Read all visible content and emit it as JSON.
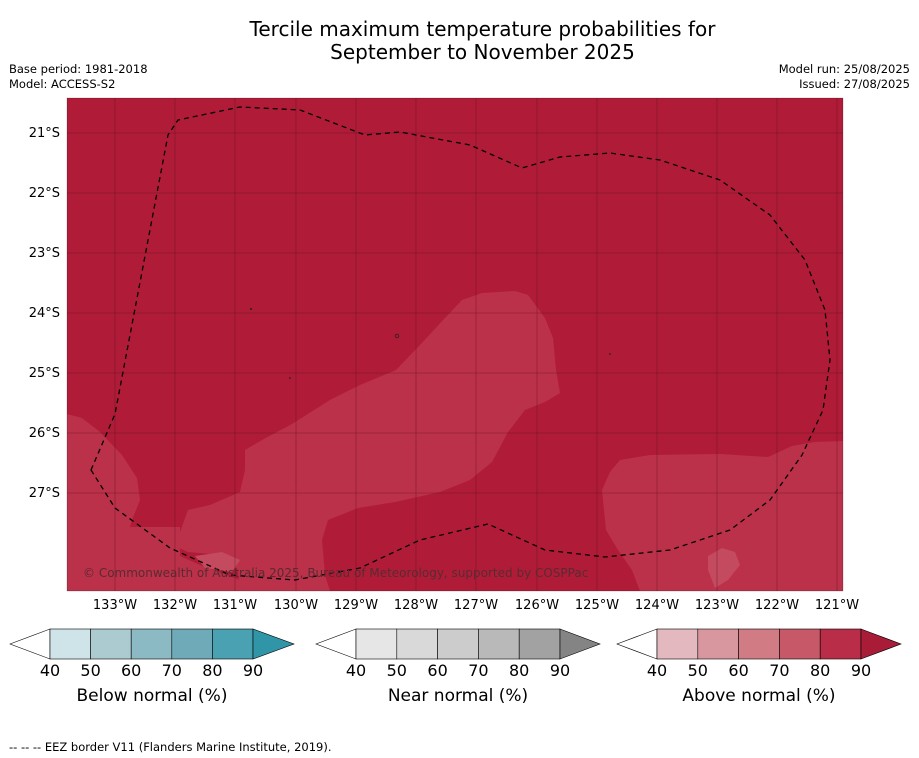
{
  "title_line1": "Tercile maximum temperature probabilities for",
  "title_line2": "September to November 2025",
  "base_period": "Base period: 1981-2018",
  "model": "Model: ACCESS-S2",
  "model_run": "Model run: 25/08/2025",
  "issued": "Issued: 27/08/2025",
  "latitude_labels": [
    "21°S",
    "22°S",
    "23°S",
    "24°S",
    "25°S",
    "26°S",
    "27°S"
  ],
  "longitude_labels": [
    "133°W",
    "132°W",
    "131°W",
    "130°W",
    "129°W",
    "128°W",
    "127°W",
    "126°W",
    "125°W",
    "124°W",
    "123°W",
    "122°W",
    "121°W"
  ],
  "copyright": "© Commonwealth of Australia 2025, Bureau of Meteorology, supported by COSPPac",
  "colorbars": [
    {
      "title": "Below normal (%)",
      "ticks": [
        "40",
        "50",
        "60",
        "70",
        "80",
        "90"
      ],
      "colors": [
        "#ffffff",
        "#cfe4e8",
        "#abcbd1",
        "#8bb9c4",
        "#6eaab8",
        "#4aa1b2",
        "#2f95a7"
      ]
    },
    {
      "title": "Near normal (%)",
      "ticks": [
        "40",
        "50",
        "60",
        "70",
        "80",
        "90"
      ],
      "colors": [
        "#ffffff",
        "#e6e6e6",
        "#d9d9d9",
        "#cccccc",
        "#b9b9b9",
        "#a2a2a2",
        "#848484"
      ]
    },
    {
      "title": "Above normal (%)",
      "ticks": [
        "40",
        "50",
        "60",
        "70",
        "80",
        "90"
      ],
      "colors": [
        "#ffffff",
        "#e3b8bf",
        "#d8979e",
        "#d17c85",
        "#c65868",
        "#b92d48",
        "#a81c38"
      ]
    }
  ],
  "map_colors": {
    "above_80_90": "#b01c38",
    "above_70_80": "#bb3149"
  },
  "footer": "--  --  -- EEZ border V11 (Flanders Marine Institute, 2019)."
}
